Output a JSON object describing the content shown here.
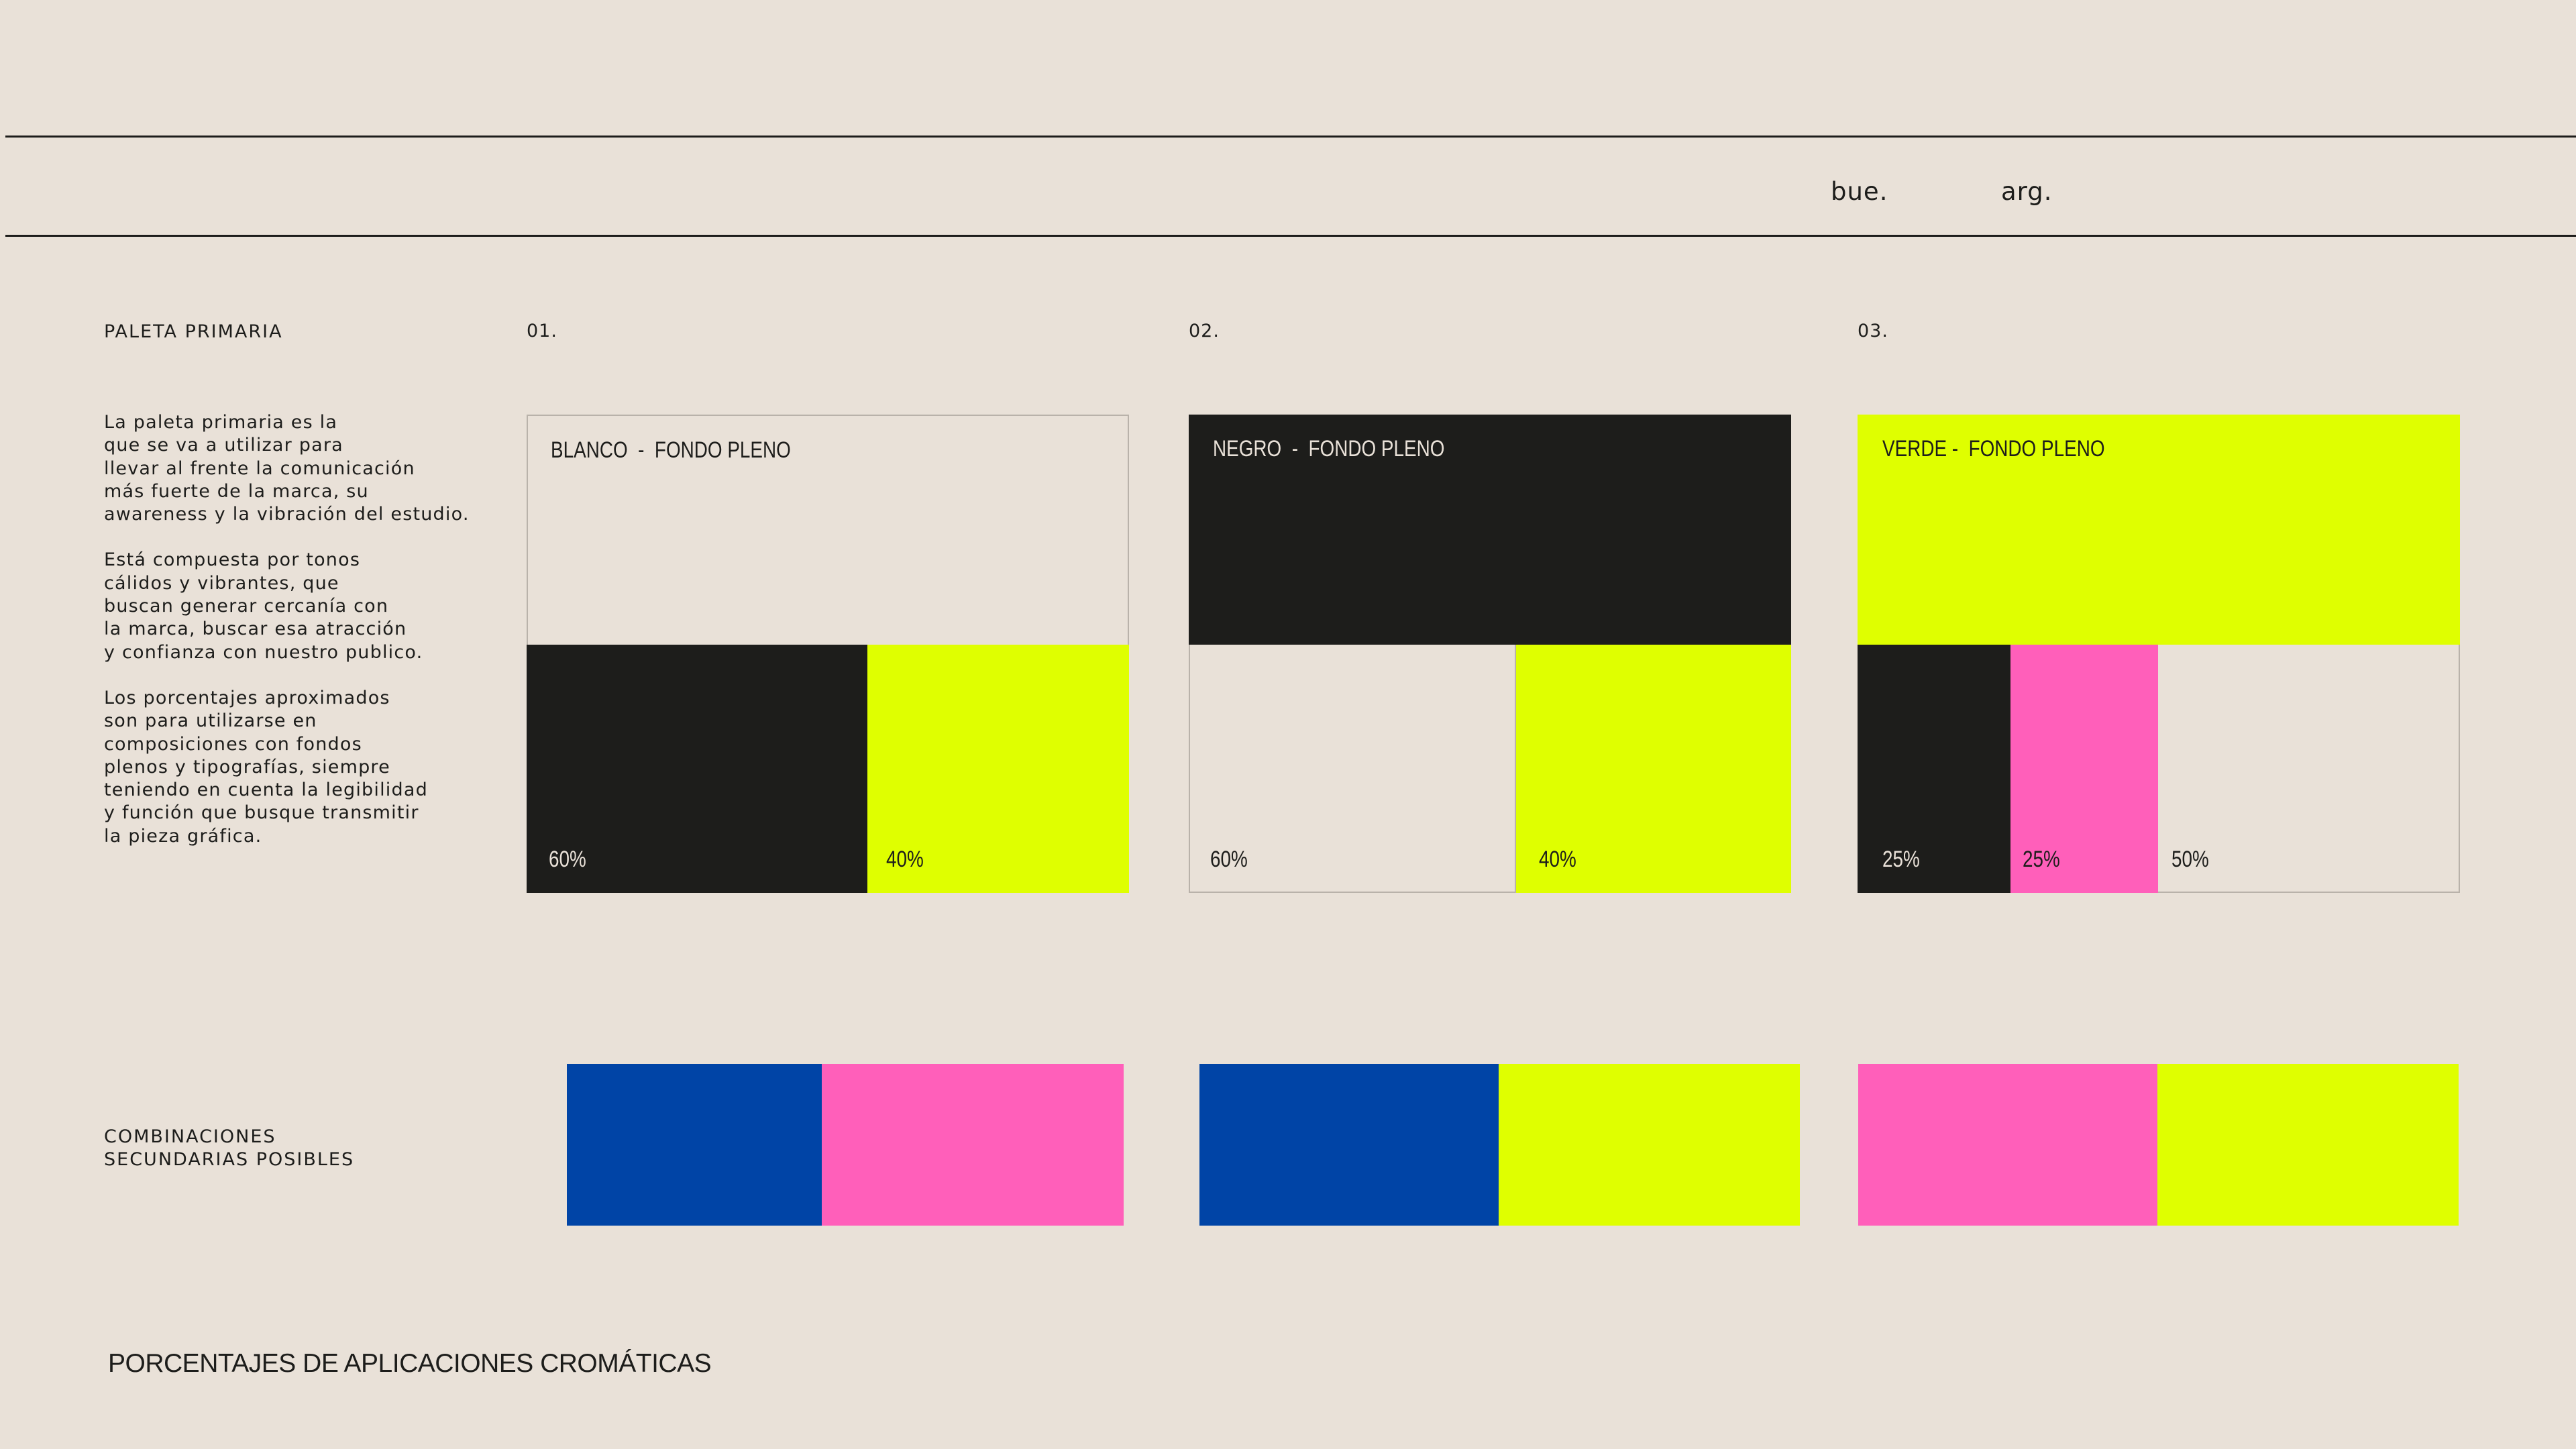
{
  "header": {
    "left_word": "bue.",
    "right_word": "arg."
  },
  "section": {
    "label": "PALETA PRIMARIA",
    "description": [
      "La paleta primaria es la\nque se va a utilizar para\nllevar al frente la comunicación\nmás fuerte de la marca, su\nawareness y la vibración del estudio.",
      "Está compuesta por tonos\ncálidos y vibrantes, que\nbuscan generar cercanía con\nla marca, buscar esa atracción\ny confianza con nuestro publico.",
      "Los porcentajes aproximados\nson para utilizarse en\ncomposiciones con fondos\nplenos y tipografías, siempre\nteniendo en cuenta la legibilidad\ny función que busque transmitir\nla pieza gráfica."
    ]
  },
  "colors": {
    "background": "#e9e1d8",
    "black": "#1d1d1b",
    "lime": "#dfff00",
    "pink": "#ff5fba",
    "blue": "#0044a6"
  },
  "cards": [
    {
      "number": "01.",
      "title": "BLANCO  -  FONDO PLENO",
      "top_color": "#e9e1d8",
      "segments": [
        {
          "percent": "60%",
          "color": "#1d1d1b",
          "text_color": "#e9e1d8"
        },
        {
          "percent": "40%",
          "color": "#dfff00",
          "text_color": "#1d1d1b"
        }
      ]
    },
    {
      "number": "02.",
      "title": "NEGRO  -  FONDO PLENO",
      "top_color": "#1d1d1b",
      "segments": [
        {
          "percent": "60%",
          "color": "#e9e1d8",
          "text_color": "#1d1d1b"
        },
        {
          "percent": "40%",
          "color": "#dfff00",
          "text_color": "#1d1d1b"
        }
      ]
    },
    {
      "number": "03.",
      "title": "VERDE -  FONDO PLENO",
      "top_color": "#dfff00",
      "segments": [
        {
          "percent": "25%",
          "color": "#1d1d1b",
          "text_color": "#e9e1d8"
        },
        {
          "percent": "25%",
          "color": "#ff5fba",
          "text_color": "#1d1d1b"
        },
        {
          "percent": "50%",
          "color": "#e9e1d8",
          "text_color": "#1d1d1b"
        }
      ]
    }
  ],
  "secondary": {
    "label": "COMBINACIONES\nSECUNDARIAS POSIBLES",
    "combinations": [
      [
        "#0044a6",
        "#ff5fba"
      ],
      [
        "#0044a6",
        "#dfff00"
      ],
      [
        "#ff5fba",
        "#dfff00"
      ]
    ]
  },
  "footer": {
    "title": "PORCENTAJES DE APLICACIONES CROMÁTICAS"
  }
}
